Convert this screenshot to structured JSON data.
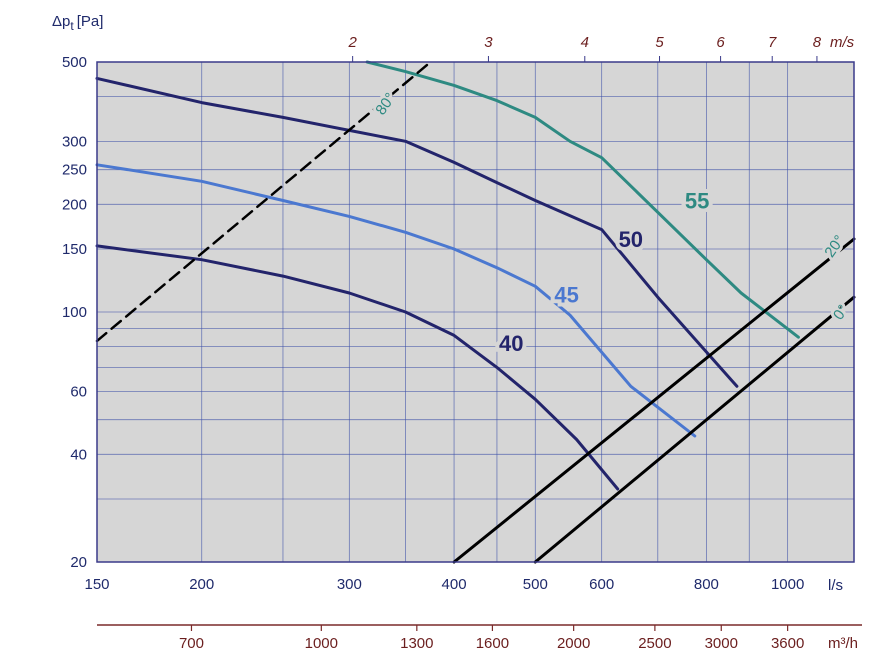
{
  "chart_data": {
    "type": "line",
    "y_label": "Δp",
    "y_label_sub": "t",
    "y_label_unit": "[Pa]",
    "x_unit_ls": "l/s",
    "x_unit_m3h": "m³/h",
    "x_unit_ms": "m/s",
    "x_range_ls": [
      150,
      1200
    ],
    "y_range_pa": [
      20,
      500
    ],
    "y_scale": "log",
    "x_scale": "log",
    "ls_ticks": [
      150,
      200,
      300,
      400,
      500,
      600,
      800,
      1000
    ],
    "pa_ticks": [
      20,
      40,
      60,
      100,
      150,
      200,
      250,
      300,
      500
    ],
    "m3h_ticks": [
      700,
      1000,
      1300,
      1600,
      2000,
      2500,
      3000,
      3600
    ],
    "ms_ticks": [
      2,
      3,
      4,
      5,
      6,
      7,
      8
    ],
    "grid_ls": [
      150,
      200,
      250,
      300,
      350,
      400,
      450,
      500,
      600,
      700,
      800,
      900,
      1000,
      1200
    ],
    "grid_pa": [
      20,
      30,
      40,
      50,
      60,
      70,
      80,
      90,
      100,
      150,
      200,
      250,
      300,
      400,
      500
    ],
    "series": [
      {
        "name": "40",
        "color": "#23246b",
        "points": [
          [
            150,
            153
          ],
          [
            200,
            140
          ],
          [
            250,
            126
          ],
          [
            300,
            113
          ],
          [
            350,
            100
          ],
          [
            400,
            86
          ],
          [
            450,
            70
          ],
          [
            500,
            57
          ],
          [
            560,
            44
          ],
          [
            627,
            32
          ]
        ]
      },
      {
        "name": "45",
        "color": "#4b78d0",
        "points": [
          [
            150,
            258
          ],
          [
            200,
            232
          ],
          [
            250,
            205
          ],
          [
            300,
            185
          ],
          [
            350,
            167
          ],
          [
            400,
            150
          ],
          [
            450,
            133
          ],
          [
            500,
            118
          ],
          [
            550,
            98
          ],
          [
            650,
            62
          ],
          [
            775,
            45
          ]
        ]
      },
      {
        "name": "50",
        "color": "#23246b",
        "points": [
          [
            150,
            450
          ],
          [
            200,
            385
          ],
          [
            250,
            350
          ],
          [
            300,
            322
          ],
          [
            350,
            300
          ],
          [
            400,
            262
          ],
          [
            450,
            230
          ],
          [
            500,
            205
          ],
          [
            600,
            170
          ],
          [
            700,
            110
          ],
          [
            870,
            62
          ]
        ]
      },
      {
        "name": "55",
        "color": "#2e8a82",
        "points": [
          [
            315,
            500
          ],
          [
            350,
            470
          ],
          [
            400,
            430
          ],
          [
            450,
            390
          ],
          [
            500,
            350
          ],
          [
            550,
            300
          ],
          [
            600,
            270
          ],
          [
            700,
            190
          ],
          [
            800,
            140
          ],
          [
            880,
            113
          ],
          [
            1030,
            85
          ]
        ]
      },
      {
        "name": "80°",
        "color": "#000000",
        "dash": true,
        "points": [
          [
            150,
            83
          ],
          [
            375,
            500
          ]
        ]
      },
      {
        "name": "20°",
        "color": "#000000",
        "points": [
          [
            400,
            20
          ],
          [
            1200,
            160
          ]
        ]
      },
      {
        "name": "0°",
        "color": "#000000",
        "points": [
          [
            500,
            20
          ],
          [
            1200,
            110
          ]
        ]
      }
    ]
  }
}
